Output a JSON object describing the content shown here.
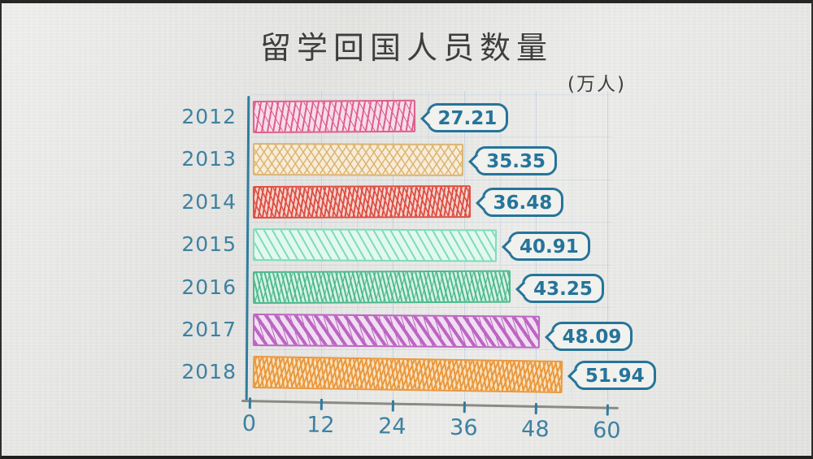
{
  "chart_data": {
    "type": "bar",
    "orientation": "horizontal",
    "style": "hand-drawn crosshatch on paper",
    "title": "留学回国人员数量",
    "unit_label": "(万人)",
    "categories": [
      "2012",
      "2013",
      "2014",
      "2015",
      "2016",
      "2017",
      "2018"
    ],
    "values": [
      27.21,
      35.35,
      36.48,
      40.91,
      43.25,
      48.09,
      51.94
    ],
    "value_labels": [
      "27.21",
      "35.35",
      "36.48",
      "40.91",
      "43.25",
      "48.09",
      "51.94"
    ],
    "x_ticks": [
      "0",
      "12",
      "24",
      "36",
      "48",
      "60"
    ],
    "xlim": [
      0,
      60
    ],
    "grid": true,
    "legend": "none",
    "colors": {
      "bar_stroke": [
        "#dd5f8e",
        "#dcb472",
        "#dd5044",
        "#7edcba",
        "#4eb98e",
        "#bc66c2",
        "#e9993f"
      ],
      "bar_tint": [
        "#f7dde8",
        "#f7ecd8",
        "#f6d6d1",
        "#e3f8ef",
        "#d9f2e6",
        "#f0def2",
        "#fae3c2"
      ],
      "axis": "#2f7d9d",
      "value_label": "#26749a",
      "tick_text": "#3e81a1",
      "title_text": "#3e3e3e",
      "gridline": "#8cafcd"
    }
  }
}
